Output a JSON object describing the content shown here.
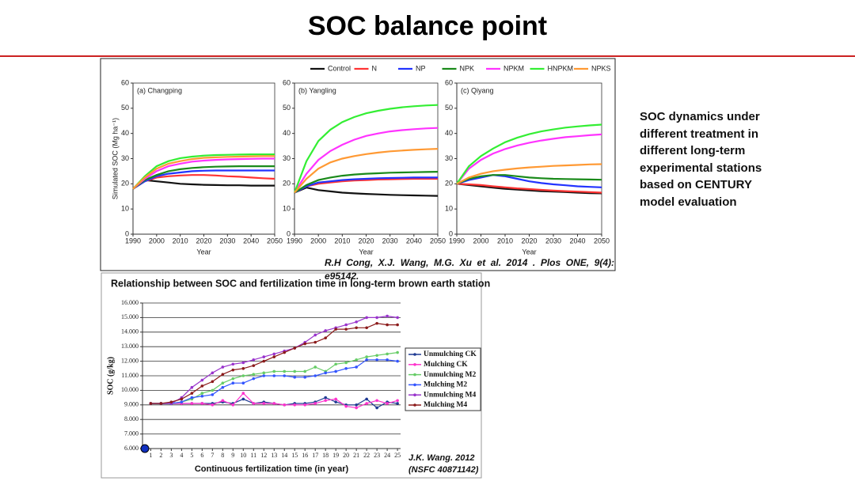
{
  "title": "SOC balance point",
  "side_text": "SOC dynamics under different treatment in different long-term experimental stations based on CENTURY model evaluation",
  "citation_top": "R.H Cong, X.J. Wang, M.G. Xu et al. 2014 . Plos ONE, 9(4): e95142.",
  "citation_bottom": [
    "J.K. Wang. 2012",
    "(NSFC 40871142)"
  ],
  "chart_data": [
    {
      "type": "line",
      "title": "(a) Changping",
      "ylabel": "Simulated SOC (Mg ha⁻¹)",
      "xlabel": "Year",
      "x": [
        1990,
        1995,
        2000,
        2005,
        2010,
        2015,
        2020,
        2025,
        2030,
        2035,
        2040,
        2045,
        2050
      ],
      "xlim": [
        1990,
        2050
      ],
      "xticks": [
        1990,
        2000,
        2010,
        2020,
        2030,
        2040,
        2050
      ],
      "ylim": [
        0,
        60
      ],
      "yticks": [
        0,
        10,
        20,
        30,
        40,
        50,
        60
      ],
      "series": [
        {
          "name": "Control",
          "color": "#111111",
          "values": [
            18,
            21.5,
            21,
            20.5,
            20,
            19.8,
            19.6,
            19.5,
            19.4,
            19.4,
            19.3,
            19.3,
            19.3
          ]
        },
        {
          "name": "N",
          "color": "#ff3333",
          "values": [
            18,
            21,
            22.5,
            23,
            23.3,
            23.5,
            23.5,
            23.3,
            23,
            22.8,
            22.5,
            22.2,
            22
          ]
        },
        {
          "name": "NP",
          "color": "#2233ff",
          "values": [
            18,
            21,
            23,
            24,
            24.5,
            25,
            25.2,
            25.3,
            25.3,
            25.3,
            25.3,
            25.3,
            25.3
          ]
        },
        {
          "name": "NPK",
          "color": "#1a8a1a",
          "values": [
            18,
            21.5,
            23.5,
            25,
            25.8,
            26.3,
            26.6,
            26.8,
            26.9,
            27,
            27,
            27,
            27
          ]
        },
        {
          "name": "NPKM",
          "color": "#ff33ff",
          "values": [
            18,
            22,
            25,
            27,
            28,
            28.8,
            29.2,
            29.5,
            29.7,
            29.8,
            29.9,
            30,
            30
          ]
        },
        {
          "name": "HNPKM",
          "color": "#33ee33",
          "values": [
            18,
            23,
            27,
            29,
            30.2,
            30.8,
            31.2,
            31.4,
            31.5,
            31.6,
            31.7,
            31.7,
            31.7
          ]
        },
        {
          "name": "NPKS",
          "color": "#ff9933",
          "values": [
            18,
            22.5,
            26,
            28,
            29,
            29.8,
            30.3,
            30.5,
            30.7,
            30.8,
            30.9,
            31,
            31
          ]
        }
      ]
    },
    {
      "type": "line",
      "title": "(b) Yangling",
      "xlabel": "Year",
      "x": [
        1990,
        1995,
        2000,
        2005,
        2010,
        2015,
        2020,
        2025,
        2030,
        2035,
        2040,
        2045,
        2050
      ],
      "xlim": [
        1990,
        2050
      ],
      "xticks": [
        1990,
        2000,
        2010,
        2020,
        2030,
        2040,
        2050
      ],
      "ylim": [
        0,
        60
      ],
      "yticks": [
        0,
        10,
        20,
        30,
        40,
        50,
        60
      ],
      "series": [
        {
          "values": [
            16.5,
            18.5,
            17.5,
            17,
            16.5,
            16.2,
            16,
            15.8,
            15.6,
            15.5,
            15.4,
            15.3,
            15.2
          ]
        },
        {
          "values": [
            16.5,
            19,
            20,
            20.5,
            21,
            21.3,
            21.5,
            21.7,
            21.8,
            21.9,
            22,
            22,
            22
          ]
        },
        {
          "values": [
            16.5,
            19,
            20.5,
            21,
            21.5,
            21.8,
            22,
            22.2,
            22.3,
            22.4,
            22.5,
            22.5,
            22.5
          ]
        },
        {
          "values": [
            16.5,
            19.5,
            21.5,
            22.5,
            23.2,
            23.7,
            24,
            24.2,
            24.4,
            24.5,
            24.6,
            24.7,
            24.8
          ]
        },
        {
          "values": [
            16.5,
            24,
            29.5,
            33,
            35.5,
            37.5,
            39,
            40,
            40.8,
            41.3,
            41.7,
            42,
            42.2
          ]
        },
        {
          "values": [
            16.5,
            29,
            37,
            41.5,
            44.5,
            46.5,
            48,
            49,
            49.8,
            50.4,
            50.8,
            51.1,
            51.3
          ]
        },
        {
          "values": [
            16.5,
            22,
            26,
            28.5,
            30,
            31,
            31.8,
            32.4,
            32.9,
            33.2,
            33.5,
            33.7,
            33.9
          ]
        }
      ]
    },
    {
      "type": "line",
      "title": "(c) Qiyang",
      "xlabel": "Year",
      "x": [
        1990,
        1995,
        2000,
        2005,
        2010,
        2015,
        2020,
        2025,
        2030,
        2035,
        2040,
        2045,
        2050
      ],
      "xlim": [
        1990,
        2050
      ],
      "xticks": [
        1990,
        2000,
        2010,
        2020,
        2030,
        2040,
        2050
      ],
      "ylim": [
        0,
        60
      ],
      "yticks": [
        0,
        10,
        20,
        30,
        40,
        50,
        60
      ],
      "series": [
        {
          "values": [
            20,
            19.5,
            19,
            18.5,
            18,
            17.7,
            17.4,
            17.1,
            16.9,
            16.7,
            16.5,
            16.3,
            16.2
          ]
        },
        {
          "values": [
            20,
            19.8,
            19.5,
            19,
            18.6,
            18.2,
            17.9,
            17.6,
            17.3,
            17.1,
            16.9,
            16.7,
            16.5
          ]
        },
        {
          "values": [
            20,
            21.5,
            22.5,
            23.5,
            23,
            22,
            21,
            20.3,
            19.8,
            19.4,
            19,
            18.8,
            18.6
          ]
        },
        {
          "values": [
            20,
            22,
            23,
            23.5,
            23.5,
            23,
            22.5,
            22.2,
            22,
            21.9,
            21.8,
            21.7,
            21.6
          ]
        },
        {
          "values": [
            20,
            26,
            29.5,
            32,
            33.8,
            35.2,
            36.3,
            37.2,
            37.9,
            38.5,
            38.9,
            39.3,
            39.6
          ]
        },
        {
          "values": [
            20,
            27,
            31,
            34,
            36.5,
            38.3,
            39.7,
            40.8,
            41.6,
            42.3,
            42.8,
            43.2,
            43.5
          ]
        },
        {
          "values": [
            20,
            22.5,
            24,
            25,
            25.6,
            26.1,
            26.5,
            26.8,
            27.1,
            27.3,
            27.5,
            27.7,
            27.8
          ]
        }
      ]
    },
    {
      "type": "line",
      "title": "Relationship between SOC and fertilization time in long-term brown earth station",
      "ylabel": "SOC (g/kg)",
      "xlabel": "Continuous fertilization time (in year)",
      "grid": true,
      "x": [
        1,
        2,
        3,
        4,
        5,
        6,
        7,
        8,
        9,
        10,
        11,
        12,
        13,
        14,
        15,
        16,
        17,
        18,
        19,
        20,
        21,
        22,
        23,
        24,
        25
      ],
      "xlim": [
        0.2,
        25.3
      ],
      "xticks": [
        1,
        2,
        3,
        4,
        5,
        6,
        7,
        8,
        9,
        10,
        11,
        12,
        13,
        14,
        15,
        16,
        17,
        18,
        19,
        20,
        21,
        22,
        23,
        24,
        25
      ],
      "ylim": [
        6,
        16
      ],
      "yticks": [
        {
          "value": 6,
          "label": "6.000"
        },
        {
          "value": 7,
          "label": "7.000"
        },
        {
          "value": 8,
          "label": "8.000"
        },
        {
          "value": 9,
          "label": "9.000"
        },
        {
          "value": 10,
          "label": "10.000"
        },
        {
          "value": 11,
          "label": "11.000"
        },
        {
          "value": 12,
          "label": "12.000"
        },
        {
          "value": 13,
          "label": "13.000"
        },
        {
          "value": 14,
          "label": "14.000"
        },
        {
          "value": 15,
          "label": "15.000"
        },
        {
          "value": 16,
          "label": "16.000"
        }
      ],
      "series": [
        {
          "name": "Unmulching CK",
          "color": "#1f3a93",
          "values": [
            9.1,
            9.1,
            9.1,
            9.1,
            9.1,
            9.1,
            9.1,
            9.2,
            9.1,
            9.4,
            9.1,
            9.2,
            9.1,
            9.0,
            9.1,
            9.1,
            9.2,
            9.5,
            9.2,
            9.0,
            9.0,
            9.4,
            8.8,
            9.2,
            9.1
          ]
        },
        {
          "name": "Mulching CK",
          "color": "#ff33cc",
          "values": [
            9.1,
            9.1,
            9.1,
            9.1,
            9.1,
            9.1,
            9.0,
            9.3,
            9.0,
            9.8,
            9.1,
            9.1,
            9.1,
            9.0,
            9.0,
            9.0,
            9.1,
            9.3,
            9.4,
            8.9,
            8.8,
            9.1,
            9.3,
            9.1,
            9.3
          ]
        },
        {
          "name": "Unmulching M2",
          "color": "#66cc66",
          "values": [
            9.1,
            9.1,
            9.1,
            9.2,
            9.4,
            9.8,
            10.0,
            10.5,
            10.8,
            11.0,
            11.1,
            11.2,
            11.3,
            11.3,
            11.3,
            11.3,
            11.6,
            11.3,
            11.8,
            11.9,
            12.1,
            12.3,
            12.4,
            12.5,
            12.6
          ]
        },
        {
          "name": "Mulching M2",
          "color": "#3355ff",
          "values": [
            9.1,
            9.1,
            9.1,
            9.2,
            9.5,
            9.6,
            9.7,
            10.2,
            10.5,
            10.5,
            10.8,
            11.0,
            11.0,
            11.0,
            10.9,
            10.9,
            11.0,
            11.2,
            11.3,
            11.5,
            11.6,
            12.1,
            12.1,
            12.1,
            12.0
          ]
        },
        {
          "name": "Unmulching M4",
          "color": "#9933cc",
          "values": [
            9.1,
            9.1,
            9.1,
            9.5,
            10.2,
            10.7,
            11.2,
            11.6,
            11.8,
            11.9,
            12.1,
            12.3,
            12.5,
            12.7,
            12.9,
            13.3,
            13.8,
            14.1,
            14.3,
            14.5,
            14.7,
            15.0,
            15.0,
            15.1,
            15.0
          ]
        },
        {
          "name": "Mulching M4",
          "color": "#8b1a1a",
          "values": [
            9.1,
            9.1,
            9.2,
            9.4,
            9.8,
            10.3,
            10.6,
            11.1,
            11.4,
            11.5,
            11.7,
            12.0,
            12.3,
            12.6,
            12.9,
            13.2,
            13.3,
            13.6,
            14.2,
            14.2,
            14.3,
            14.3,
            14.6,
            14.5,
            14.5
          ]
        }
      ]
    }
  ]
}
